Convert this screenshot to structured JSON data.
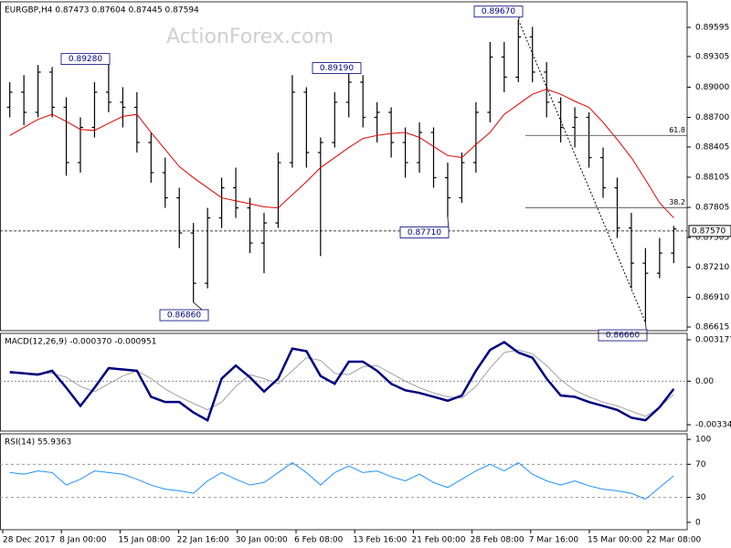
{
  "chart_data": [
    {
      "type": "ohlc",
      "title": "EURGBP,H4 0.87473 0.87604 0.87445 0.87594",
      "watermark": "ActionForex.com",
      "color": "#000000",
      "open": [
        0.888,
        0.8895,
        0.8875,
        0.8915,
        0.888,
        0.8825,
        0.886,
        0.8895,
        0.8885,
        0.888,
        0.8845,
        0.8815,
        0.879,
        0.8755,
        0.8705,
        0.877,
        0.88,
        0.878,
        0.8745,
        0.8765,
        0.8825,
        0.8895,
        0.8835,
        0.8845,
        0.8885,
        0.8905,
        0.887,
        0.8875,
        0.8845,
        0.8825,
        0.8855,
        0.881,
        0.879,
        0.8825,
        0.8875,
        0.893,
        0.891,
        0.895,
        0.8915,
        0.8885,
        0.886,
        0.887,
        0.883,
        0.88,
        0.876,
        0.8725,
        0.8715,
        0.8735
      ],
      "high": [
        0.8905,
        0.8912,
        0.8922,
        0.892,
        0.889,
        0.887,
        0.8905,
        0.8928,
        0.89,
        0.8895,
        0.8855,
        0.883,
        0.88,
        0.8765,
        0.878,
        0.881,
        0.882,
        0.879,
        0.8775,
        0.8835,
        0.8912,
        0.89,
        0.885,
        0.8895,
        0.8919,
        0.8912,
        0.8885,
        0.888,
        0.886,
        0.8865,
        0.886,
        0.8825,
        0.8835,
        0.8885,
        0.8945,
        0.8945,
        0.8967,
        0.896,
        0.8925,
        0.889,
        0.888,
        0.8875,
        0.884,
        0.881,
        0.8775,
        0.874,
        0.875,
        0.8762
      ],
      "low": [
        0.887,
        0.8862,
        0.887,
        0.887,
        0.8812,
        0.8815,
        0.885,
        0.8875,
        0.886,
        0.8835,
        0.8805,
        0.878,
        0.874,
        0.8686,
        0.87,
        0.876,
        0.877,
        0.8735,
        0.8715,
        0.876,
        0.882,
        0.882,
        0.8732,
        0.884,
        0.887,
        0.886,
        0.8845,
        0.883,
        0.881,
        0.8815,
        0.88,
        0.8771,
        0.8785,
        0.8815,
        0.8865,
        0.8895,
        0.8905,
        0.8905,
        0.887,
        0.8845,
        0.884,
        0.882,
        0.879,
        0.875,
        0.87,
        0.8666,
        0.871,
        0.8725
      ],
      "close": [
        0.8895,
        0.8875,
        0.8915,
        0.888,
        0.8825,
        0.886,
        0.8895,
        0.8885,
        0.888,
        0.8845,
        0.8815,
        0.879,
        0.8755,
        0.8705,
        0.877,
        0.88,
        0.878,
        0.8745,
        0.8765,
        0.8825,
        0.8895,
        0.8835,
        0.8845,
        0.8885,
        0.8905,
        0.887,
        0.8875,
        0.8845,
        0.8825,
        0.8855,
        0.881,
        0.879,
        0.8825,
        0.8875,
        0.893,
        0.891,
        0.895,
        0.8915,
        0.8885,
        0.886,
        0.887,
        0.883,
        0.88,
        0.876,
        0.8725,
        0.8715,
        0.8735,
        0.8759
      ],
      "ma": {
        "color": "#e00000",
        "values": [
          0.8852,
          0.886,
          0.8868,
          0.8873,
          0.8866,
          0.8858,
          0.8857,
          0.8864,
          0.8871,
          0.8873,
          0.8855,
          0.8838,
          0.8821,
          0.881,
          0.88,
          0.879,
          0.8787,
          0.8784,
          0.8781,
          0.878,
          0.8793,
          0.8806,
          0.882,
          0.883,
          0.884,
          0.8849,
          0.8852,
          0.8854,
          0.8855,
          0.885,
          0.8841,
          0.8832,
          0.883,
          0.8843,
          0.8855,
          0.8873,
          0.8883,
          0.8893,
          0.8898,
          0.8893,
          0.8886,
          0.888,
          0.8865,
          0.8848,
          0.883,
          0.8808,
          0.8785,
          0.877
        ]
      },
      "ylim": [
        0.86579,
        0.89849
      ],
      "yticks": [
        0.89595,
        0.89305,
        {
          "value": 0.89,
          "label": "0.89000"
        },
        {
          "value": 0.887,
          "label": "0.88700"
        },
        0.88405,
        0.88105,
        0.87805,
        0.87505,
        {
          "value": 0.8721,
          "label": "0.87210"
        },
        {
          "value": 0.8691,
          "label": "0.86910"
        },
        0.86615
      ],
      "annotations": [
        {
          "label": "0.89280",
          "value": 0.8928
        },
        {
          "label": "0.89190",
          "value": 0.8919
        },
        {
          "label": "0.86860",
          "value": 0.8686
        },
        {
          "label": "0.87710",
          "value": 0.8771
        },
        {
          "label": "0.89670",
          "value": 0.8967
        },
        {
          "label": "0.86660",
          "value": 0.8666
        }
      ],
      "fib_levels": [
        {
          "label": "61.8",
          "value": 0.8852
        },
        {
          "label": "38.2",
          "value": 0.878
        }
      ],
      "current_price": {
        "value": 0.8757,
        "label": "0.87570"
      },
      "x_labels": [
        "28 Dec 2017",
        "8 Jan 00:00",
        "15 Jan 08:00",
        "22 Jan 16:00",
        "30 Jan 00:00",
        "6 Feb 08:00",
        "13 Feb 16:00",
        "21 Feb 00:00",
        "28 Feb 08:00",
        "7 Mar 16:00",
        "15 Mar 00:00",
        "22 Mar 08:00"
      ]
    },
    {
      "type": "macd",
      "title": "MACD(12,26,9) -0.000370 -0.000951",
      "series": [
        {
          "color": "#000080",
          "values": [
            0.0007,
            0.0006,
            0.0005,
            0.0008,
            -0.0005,
            -0.0019,
            -0.0005,
            0.001,
            0.0009,
            0.0008,
            -0.0012,
            -0.0016,
            -0.0016,
            -0.0024,
            -0.003,
            0.0002,
            0.0012,
            0.0003,
            -0.0008,
            0.0002,
            0.0025,
            0.0023,
            0.0004,
            -0.0002,
            0.0015,
            0.0015,
            0.0008,
            -0.0002,
            -0.0007,
            -0.0009,
            -0.0012,
            -0.0015,
            -0.0011,
            0.0008,
            0.0024,
            0.003,
            0.0022,
            0.0018,
            0.0002,
            -0.0011,
            -0.0012,
            -0.0016,
            -0.0019,
            -0.0022,
            -0.0028,
            -0.003,
            -0.002,
            -0.0006
          ]
        },
        {
          "color": "#a0a0a0",
          "values": [
            0.0006,
            0.0006,
            0.0006,
            0.0006,
            0.0003,
            -0.0004,
            -0.0008,
            -0.0002,
            0.0004,
            0.0008,
            0.0002,
            -0.0006,
            -0.0012,
            -0.0017,
            -0.0022,
            -0.0016,
            -0.0004,
            0.0005,
            0.0002,
            -0.0002,
            0.0008,
            0.0018,
            0.0016,
            0.0006,
            0.0005,
            0.0011,
            0.0012,
            0.0006,
            0,
            -0.0005,
            -0.0009,
            -0.0012,
            -0.0013,
            -0.0004,
            0.001,
            0.0022,
            0.0024,
            0.0021,
            0.0012,
            0.0001,
            -0.0007,
            -0.0012,
            -0.0016,
            -0.0019,
            -0.0023,
            -0.0027,
            -0.002,
            -0.001
          ]
        }
      ],
      "ylim": [
        -0.00383,
        0.00367
      ],
      "yticks": [
        0.003177,
        {
          "value": 0,
          "label": "0.00"
        },
        -0.003344
      ]
    },
    {
      "type": "rsi",
      "title": "RSI(14) 55.9363",
      "series": [
        {
          "color": "#1e90ff",
          "values": [
            60,
            58,
            62,
            60,
            45,
            52,
            62,
            60,
            58,
            52,
            45,
            40,
            38,
            35,
            50,
            60,
            52,
            45,
            48,
            60,
            72,
            60,
            45,
            60,
            68,
            60,
            62,
            55,
            50,
            58,
            48,
            42,
            52,
            62,
            70,
            62,
            72,
            58,
            50,
            45,
            50,
            44,
            40,
            38,
            35,
            28,
            42,
            56
          ]
        }
      ],
      "ylim": [
        -8.9,
        106.7
      ],
      "yticks": [
        100,
        70,
        30,
        0
      ],
      "levels": [
        70,
        30
      ]
    }
  ]
}
